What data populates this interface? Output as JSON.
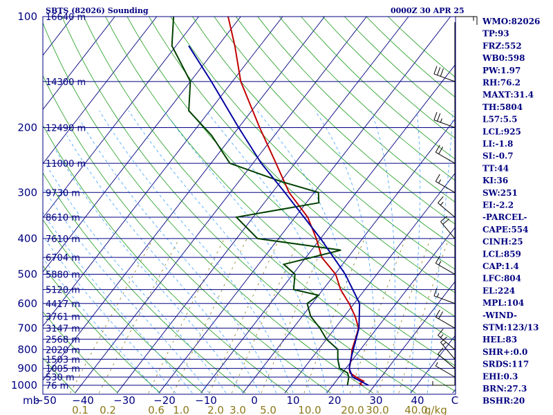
{
  "chart_data": {
    "type": "line",
    "title_left": "SBTS (82026) Sounding",
    "title_right": "0000Z 30 APR 25",
    "pressure_unit_label": "mb",
    "mixing_unit_label": "g/kg",
    "pressure_levels": [
      100,
      200,
      300,
      400,
      500,
      600,
      700,
      800,
      900,
      1000
    ],
    "pressure_tick_labels": [
      "100",
      "200",
      "300",
      "400",
      "500",
      "600",
      "700",
      "800",
      "900",
      "1000"
    ],
    "height_labels": [
      {
        "p": 100,
        "label": "16640 m"
      },
      {
        "p": 150,
        "label": "14300 m"
      },
      {
        "p": 200,
        "label": "12490 m"
      },
      {
        "p": 250,
        "label": "11000 m"
      },
      {
        "p": 300,
        "label": "9730 m"
      },
      {
        "p": 350,
        "label": "8610 m"
      },
      {
        "p": 400,
        "label": "7610 m"
      },
      {
        "p": 450,
        "label": "6704 m"
      },
      {
        "p": 500,
        "label": "5880 m"
      },
      {
        "p": 550,
        "label": "5120 m"
      },
      {
        "p": 600,
        "label": "4417 m"
      },
      {
        "p": 650,
        "label": "3761 m"
      },
      {
        "p": 700,
        "label": "3147 m"
      },
      {
        "p": 750,
        "label": "2568 m"
      },
      {
        "p": 800,
        "label": "2020 m"
      },
      {
        "p": 850,
        "label": "1503 m"
      },
      {
        "p": 900,
        "label": "1005 m"
      },
      {
        "p": 950,
        "label": "530 m"
      },
      {
        "p": 1000,
        "label": "76 m"
      }
    ],
    "temperature_ticks": [
      -40,
      -30,
      -20,
      -10,
      0,
      10,
      20,
      30,
      40
    ],
    "temperature_tick_labels": [
      "−50",
      "−40",
      "−30",
      "−20",
      "−10",
      "0",
      "10",
      "20",
      "30",
      "40",
      "C"
    ],
    "mixing_ratio_labels": [
      "0.1",
      "0.2",
      "0.6",
      "1.0",
      "2.0",
      "3.0",
      "5.0",
      "10.0",
      "20.0",
      "30.0",
      "40.0"
    ],
    "mixing_ratio_values": [
      0.1,
      0.2,
      0.6,
      1.0,
      2.0,
      3.0,
      5.0,
      10.0,
      20.0,
      30.0,
      40.0
    ],
    "xlim": [
      -50,
      50
    ],
    "ylim": [
      1050,
      100
    ],
    "series": [
      {
        "role": "temperature",
        "color": "#c00000",
        "points": [
          [
            1000,
            27.0
          ],
          [
            990,
            26.2
          ],
          [
            975,
            26.6
          ],
          [
            950,
            24.0
          ],
          [
            925,
            21.8
          ],
          [
            900,
            20.8
          ],
          [
            850,
            19.6
          ],
          [
            800,
            18.0
          ],
          [
            750,
            16.9
          ],
          [
            700,
            15.6
          ],
          [
            650,
            12.6
          ],
          [
            600,
            8.8
          ],
          [
            550,
            4.2
          ],
          [
            500,
            0.2
          ],
          [
            450,
            -6.2
          ],
          [
            400,
            -11.0
          ],
          [
            350,
            -17.0
          ],
          [
            300,
            -26.0
          ],
          [
            250,
            -34.5
          ],
          [
            200,
            -45.0
          ],
          [
            150,
            -58.0
          ],
          [
            120,
            -66.0
          ],
          [
            100,
            -73.0
          ]
        ]
      },
      {
        "role": "dewpoint",
        "color": "#004000",
        "points": [
          [
            1000,
            23.5
          ],
          [
            950,
            22.3
          ],
          [
            925,
            21.2
          ],
          [
            900,
            18.5
          ],
          [
            850,
            16.4
          ],
          [
            800,
            14.6
          ],
          [
            750,
            10.0
          ],
          [
            700,
            6.4
          ],
          [
            650,
            2.0
          ],
          [
            600,
            -1.2
          ],
          [
            570,
            0.0
          ],
          [
            550,
            -7.0
          ],
          [
            500,
            -9.5
          ],
          [
            470,
            -14.0
          ],
          [
            430,
            -3.0
          ],
          [
            400,
            -25.0
          ],
          [
            350,
            -34.0
          ],
          [
            320,
            -17.0
          ],
          [
            300,
            -19.0
          ],
          [
            280,
            -30.0
          ],
          [
            250,
            -45.5
          ],
          [
            210,
            -55.0
          ],
          [
            180,
            -65.0
          ],
          [
            150,
            -70.0
          ],
          [
            120,
            -81.0
          ],
          [
            100,
            -86.0
          ]
        ]
      },
      {
        "role": "parcel",
        "color": "#0000a0",
        "points": [
          [
            1000,
            28.5
          ],
          [
            950,
            23.2
          ],
          [
            900,
            20.8
          ],
          [
            850,
            19.5
          ],
          [
            800,
            18.3
          ],
          [
            700,
            15.7
          ],
          [
            600,
            11.3
          ],
          [
            500,
            2.5
          ],
          [
            400,
            -10.0
          ],
          [
            300,
            -27.0
          ],
          [
            250,
            -38.0
          ],
          [
            200,
            -50.0
          ],
          [
            150,
            -65.0
          ],
          [
            120,
            -77.0
          ]
        ]
      }
    ],
    "grid": true,
    "legend": "none",
    "indices": [
      "WMO:82026",
      "TP:93",
      "FRZ:552",
      "WB0:598",
      "PW:1.97",
      "RH:76.2",
      "MAXT:31.4",
      "TH:5804",
      "L57:5.5",
      "LCL:925",
      "LI:-1.8",
      "SI:-0.7",
      "TT:44",
      "KI:36",
      "SW:251",
      "EI:-2.2",
      "-PARCEL-",
      "CAPE:554",
      "CINH:25",
      "LCL:859",
      "CAP:1.4",
      "LFC:804",
      "EL:224",
      "MPL:104",
      "-WIND-",
      "STM:123/13",
      "HEL:83",
      "SHR+:0.0",
      "SRDS:117",
      "EHI:0.3",
      "BRN:27.3",
      "BSHR:20"
    ],
    "wind_barbs": [
      {
        "p": 100,
        "dir": 90,
        "spd": 15
      },
      {
        "p": 150,
        "dir": 290,
        "spd": 30
      },
      {
        "p": 200,
        "dir": 290,
        "spd": 25
      },
      {
        "p": 250,
        "dir": 300,
        "spd": 20
      },
      {
        "p": 300,
        "dir": 300,
        "spd": 15
      },
      {
        "p": 350,
        "dir": 310,
        "spd": 15
      },
      {
        "p": 400,
        "dir": 320,
        "spd": 20
      },
      {
        "p": 500,
        "dir": 300,
        "spd": 15
      },
      {
        "p": 600,
        "dir": 290,
        "spd": 15
      },
      {
        "p": 700,
        "dir": 300,
        "spd": 20
      },
      {
        "p": 800,
        "dir": 310,
        "spd": 15
      },
      {
        "p": 850,
        "dir": 320,
        "spd": 15
      },
      {
        "p": 900,
        "dir": 310,
        "spd": 10
      },
      {
        "p": 950,
        "dir": 300,
        "spd": 5
      },
      {
        "p": 1000,
        "dir": 270,
        "spd": 5
      }
    ]
  },
  "colors": {
    "frame": "#000080",
    "isobar": "#000080",
    "isotherm": "#000080",
    "dry_adiabat": "#1a9a1a",
    "moist_adiabat": "#3aa0ff",
    "mixing_ratio": "#8b7a1a"
  }
}
